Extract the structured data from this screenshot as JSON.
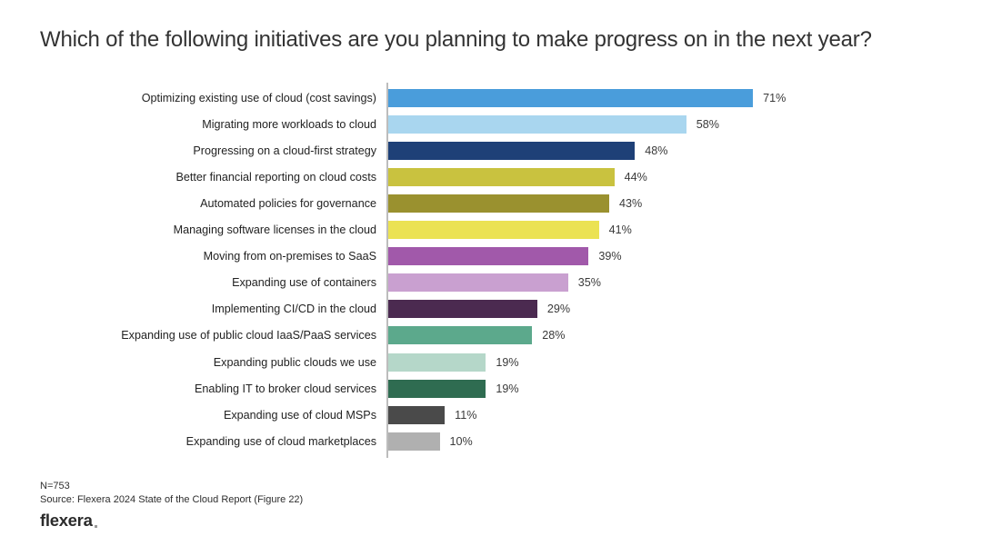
{
  "title": "Which of the following initiatives are you planning to make progress on in the next year?",
  "chart_data": {
    "type": "bar",
    "orientation": "horizontal",
    "unit": "percent",
    "xlim": [
      0,
      100
    ],
    "grid": false,
    "value_label_position": "right-of-bar",
    "categories": [
      "Optimizing existing use of cloud (cost savings)",
      "Migrating more workloads to cloud",
      "Progressing on a cloud-first strategy",
      "Better financial reporting on cloud costs",
      "Automated policies for governance",
      "Managing software licenses in the cloud",
      "Moving from on-premises to SaaS",
      "Expanding use of containers",
      "Implementing CI/CD in the cloud",
      "Expanding use of public cloud IaaS/PaaS services",
      "Expanding public clouds we use",
      "Enabling IT to broker cloud services",
      "Expanding use of cloud MSPs",
      "Expanding use of cloud marketplaces"
    ],
    "values": [
      71,
      58,
      48,
      44,
      43,
      41,
      39,
      35,
      29,
      28,
      19,
      19,
      11,
      10
    ],
    "value_labels": [
      "71%",
      "58%",
      "48%",
      "44%",
      "43%",
      "41%",
      "39%",
      "35%",
      "29%",
      "28%",
      "19%",
      "19%",
      "11%",
      "10%"
    ],
    "bar_colors": [
      "#4A9DDB",
      "#A9D6EF",
      "#1E4077",
      "#C9C23F",
      "#9A912F",
      "#EBE253",
      "#A159AA",
      "#C9A0D0",
      "#4B2A50",
      "#5CA98C",
      "#B5D7C9",
      "#2F6C51",
      "#4A4A4A",
      "#B0B0B0"
    ],
    "title": "Which of the following initiatives are you planning to make progress on in the next year?"
  },
  "footer": {
    "n_label": "N=753",
    "source": "Source: Flexera 2024 State of the Cloud Report (Figure 22)",
    "logo_text": "flexera"
  },
  "colors": {
    "background": "#ffffff",
    "title_text": "#333333",
    "label_text": "#222222",
    "value_text": "#3a3a3a",
    "axis_line": "#bdbdbd",
    "logo_text": "#2b2b2b"
  }
}
